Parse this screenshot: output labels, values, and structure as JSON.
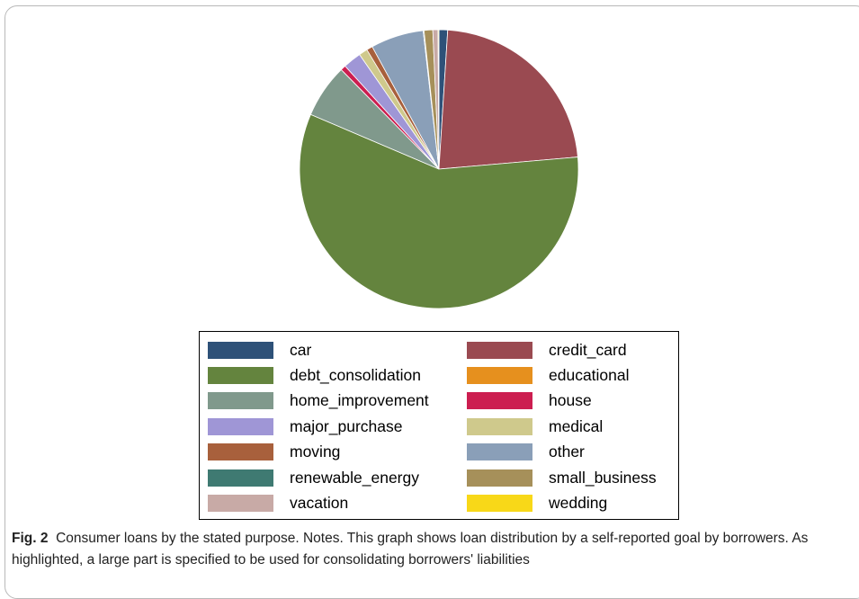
{
  "chart_data": {
    "type": "pie",
    "slices": [
      {
        "label": "car",
        "value": 1.0,
        "color": "#2e5178"
      },
      {
        "label": "credit_card",
        "value": 22.5,
        "color": "#9a4a51"
      },
      {
        "label": "debt_consolidation",
        "value": 57.5,
        "color": "#64843e"
      },
      {
        "label": "educational",
        "value": 0.0,
        "color": "#e6901e"
      },
      {
        "label": "home_improvement",
        "value": 6.2,
        "color": "#80998c"
      },
      {
        "label": "house",
        "value": 0.6,
        "color": "#cc1e50"
      },
      {
        "label": "major_purchase",
        "value": 2.1,
        "color": "#9f96d6"
      },
      {
        "label": "medical",
        "value": 1.0,
        "color": "#cfc98c"
      },
      {
        "label": "moving",
        "value": 0.7,
        "color": "#a8603c"
      },
      {
        "label": "other",
        "value": 6.1,
        "color": "#8a9fb8"
      },
      {
        "label": "renewable_energy",
        "value": 0.1,
        "color": "#3f7a72"
      },
      {
        "label": "small_business",
        "value": 1.0,
        "color": "#a6905a"
      },
      {
        "label": "vacation",
        "value": 0.6,
        "color": "#c8aaa6"
      },
      {
        "label": "wedding",
        "value": 0.1,
        "color": "#f8d818"
      }
    ],
    "legend_placement": "bottom",
    "legend_columns": 2
  },
  "caption": {
    "label": "Fig. 2",
    "text": "Consumer loans by the stated purpose. Notes. This graph shows loan distribution by a self-reported goal by borrowers. As highlighted, a large part is specified to be used for consolidating borrowers' liabilities"
  }
}
